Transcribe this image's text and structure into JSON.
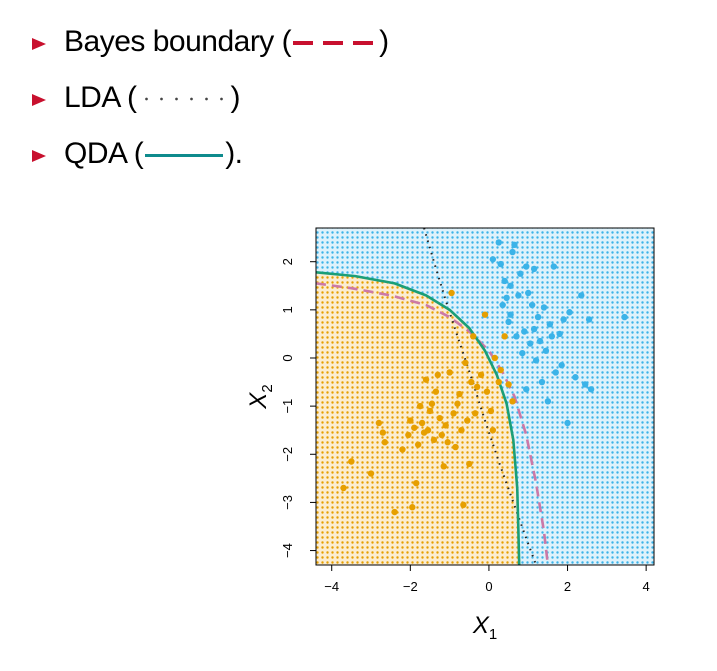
{
  "legend": [
    {
      "open": "Bayes boundary (",
      "close": ")",
      "line_style": "dashed",
      "color": "#c8102e"
    },
    {
      "open": "LDA (",
      "close": ")",
      "line_style": "dotted",
      "color": "#444444"
    },
    {
      "open": "QDA (",
      "close": ").",
      "line_style": "solid",
      "color": "#0f8b8d"
    }
  ],
  "chart_data": {
    "type": "scatter",
    "xlabel": "X",
    "xlabel_sub": "1",
    "ylabel": "X",
    "ylabel_sub": "2",
    "xlim": [
      -4.4,
      4.2
    ],
    "ylim": [
      -4.3,
      2.7
    ],
    "xticks": [
      -4,
      -2,
      0,
      2,
      4
    ],
    "yticks": [
      -4,
      -3,
      -2,
      -1,
      0,
      1,
      2
    ],
    "colors": {
      "orange": "#e69f00",
      "blue": "#3bb3e8",
      "bayes": "#cc79a7",
      "lda": "#222222",
      "qda": "#1b9e77"
    },
    "series": [
      {
        "name": "",
        "color": "orange",
        "points": [
          [
            -3.7,
            -2.7
          ],
          [
            -3.5,
            -2.15
          ],
          [
            -3.0,
            -2.4
          ],
          [
            -2.8,
            -1.35
          ],
          [
            -2.7,
            -1.55
          ],
          [
            -2.65,
            -1.75
          ],
          [
            -2.4,
            -3.2
          ],
          [
            -2.2,
            -1.9
          ],
          [
            -2.05,
            -1.6
          ],
          [
            -2.0,
            -1.3
          ],
          [
            -1.95,
            -3.1
          ],
          [
            -1.9,
            -1.45
          ],
          [
            -1.85,
            -2.6
          ],
          [
            -1.8,
            -1.8
          ],
          [
            -1.75,
            -1.0
          ],
          [
            -1.7,
            -1.35
          ],
          [
            -1.65,
            -1.55
          ],
          [
            -1.6,
            -0.45
          ],
          [
            -1.55,
            -1.5
          ],
          [
            -1.5,
            -1.1
          ],
          [
            -1.45,
            -0.95
          ],
          [
            -1.4,
            -1.7
          ],
          [
            -1.35,
            -0.7
          ],
          [
            -1.3,
            -0.35
          ],
          [
            -1.25,
            -1.25
          ],
          [
            -1.2,
            -1.6
          ],
          [
            -1.15,
            -2.25
          ],
          [
            -1.1,
            -1.4
          ],
          [
            -1.05,
            -1.75
          ],
          [
            -1.0,
            -0.3
          ],
          [
            -0.9,
            -1.15
          ],
          [
            -0.85,
            -1.85
          ],
          [
            -0.8,
            -0.95
          ],
          [
            -0.75,
            -0.75
          ],
          [
            -0.7,
            -1.5
          ],
          [
            -0.65,
            -3.05
          ],
          [
            -0.6,
            -0.1
          ],
          [
            -0.55,
            -1.3
          ],
          [
            -0.5,
            -2.2
          ],
          [
            -0.45,
            -0.5
          ],
          [
            -0.4,
            0.45
          ],
          [
            -0.35,
            -1.15
          ],
          [
            -0.3,
            -0.6
          ],
          [
            -0.2,
            -0.35
          ],
          [
            -0.1,
            0.9
          ],
          [
            -0.05,
            -0.7
          ],
          [
            0.05,
            -1.1
          ],
          [
            0.1,
            -1.5
          ],
          [
            0.15,
            0.0
          ],
          [
            0.3,
            -0.25
          ],
          [
            0.4,
            0.45
          ],
          [
            0.5,
            -0.55
          ],
          [
            0.6,
            -0.9
          ],
          [
            0.25,
            -0.5
          ],
          [
            -0.95,
            1.35
          ]
        ]
      },
      {
        "name": "",
        "color": "blue",
        "points": [
          [
            0.1,
            2.05
          ],
          [
            0.25,
            2.4
          ],
          [
            0.35,
            1.1
          ],
          [
            0.4,
            1.6
          ],
          [
            0.5,
            0.75
          ],
          [
            0.55,
            1.5
          ],
          [
            0.6,
            2.2
          ],
          [
            0.65,
            2.35
          ],
          [
            0.7,
            0.45
          ],
          [
            0.75,
            1.3
          ],
          [
            0.8,
            1.75
          ],
          [
            0.85,
            0.1
          ],
          [
            0.9,
            0.55
          ],
          [
            0.95,
            1.9
          ],
          [
            1.0,
            1.35
          ],
          [
            1.05,
            0.3
          ],
          [
            1.1,
            1.1
          ],
          [
            1.15,
            0.6
          ],
          [
            1.2,
            -0.05
          ],
          [
            1.25,
            0.85
          ],
          [
            1.3,
            0.35
          ],
          [
            1.35,
            -0.5
          ],
          [
            1.4,
            1.05
          ],
          [
            1.45,
            0.15
          ],
          [
            1.5,
            -0.9
          ],
          [
            1.55,
            0.7
          ],
          [
            1.6,
            0.45
          ],
          [
            1.65,
            1.9
          ],
          [
            1.7,
            -0.3
          ],
          [
            1.8,
            0.5
          ],
          [
            1.85,
            -0.15
          ],
          [
            1.9,
            0.8
          ],
          [
            2.0,
            -1.35
          ],
          [
            2.05,
            0.95
          ],
          [
            2.2,
            -0.4
          ],
          [
            2.35,
            1.3
          ],
          [
            2.45,
            -0.55
          ],
          [
            2.55,
            0.8
          ],
          [
            2.6,
            -0.65
          ],
          [
            3.45,
            0.85
          ],
          [
            0.45,
            1.25
          ],
          [
            0.95,
            -0.65
          ],
          [
            1.15,
            1.85
          ],
          [
            0.55,
            0.9
          ],
          [
            0.3,
            1.95
          ]
        ]
      }
    ],
    "boundaries": {
      "bayes": [
        [
          -4.4,
          1.55
        ],
        [
          -3.5,
          1.45
        ],
        [
          -2.5,
          1.3
        ],
        [
          -1.6,
          1.1
        ],
        [
          -1.0,
          0.85
        ],
        [
          -0.5,
          0.55
        ],
        [
          0.0,
          0.15
        ],
        [
          0.35,
          -0.3
        ],
        [
          0.65,
          -0.8
        ],
        [
          0.95,
          -1.6
        ],
        [
          1.2,
          -2.6
        ],
        [
          1.4,
          -3.6
        ],
        [
          1.5,
          -4.3
        ]
      ],
      "lda": [
        [
          -1.65,
          2.7
        ],
        [
          -1.4,
          2.0
        ],
        [
          -1.1,
          1.2
        ],
        [
          -0.8,
          0.45
        ],
        [
          -0.45,
          -0.4
        ],
        [
          -0.1,
          -1.3
        ],
        [
          0.25,
          -2.15
        ],
        [
          0.6,
          -2.95
        ],
        [
          0.95,
          -3.75
        ],
        [
          1.2,
          -4.3
        ]
      ],
      "qda": [
        [
          -4.4,
          1.78
        ],
        [
          -3.4,
          1.7
        ],
        [
          -2.4,
          1.55
        ],
        [
          -1.6,
          1.3
        ],
        [
          -1.0,
          1.0
        ],
        [
          -0.5,
          0.62
        ],
        [
          -0.1,
          0.15
        ],
        [
          0.2,
          -0.35
        ],
        [
          0.45,
          -0.95
        ],
        [
          0.62,
          -1.7
        ],
        [
          0.72,
          -2.7
        ],
        [
          0.75,
          -3.6
        ],
        [
          0.77,
          -4.3
        ]
      ]
    }
  }
}
